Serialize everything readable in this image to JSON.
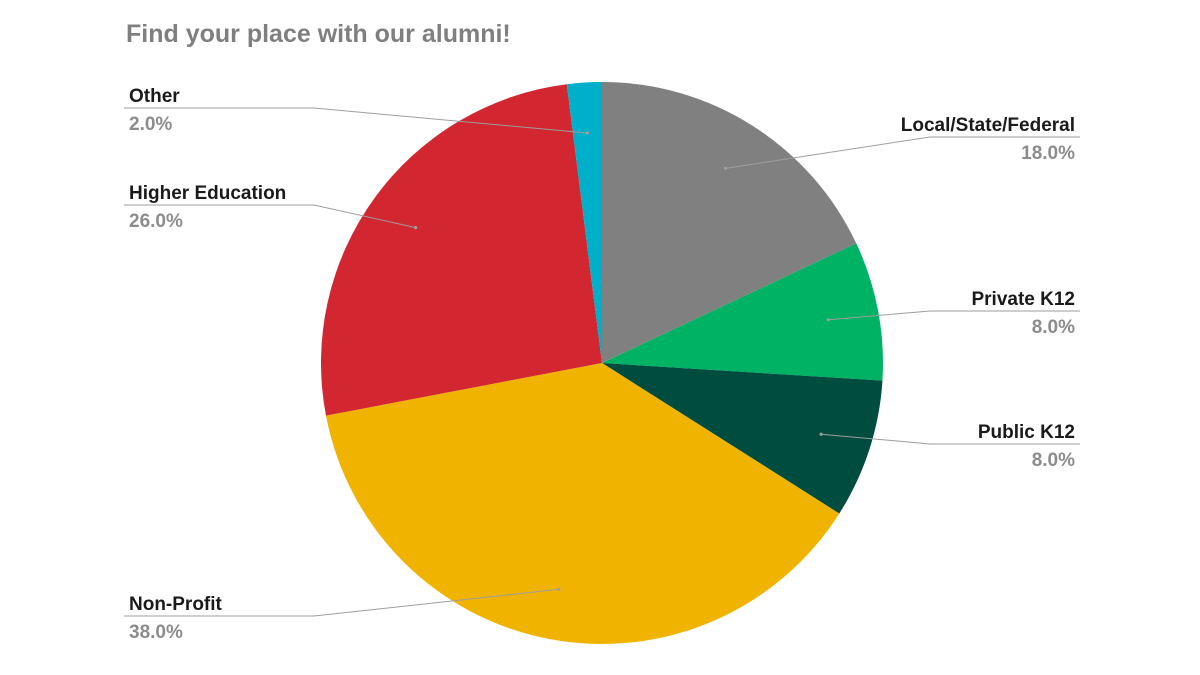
{
  "chart_data": {
    "type": "pie",
    "title": "Find your place with our alumni!",
    "slices": [
      {
        "label": "Local/State/Federal",
        "value": 18.0,
        "display": "18.0%",
        "color": "#808080",
        "side": "right"
      },
      {
        "label": "Private K12",
        "value": 8.0,
        "display": "8.0%",
        "color": "#00b263",
        "side": "right"
      },
      {
        "label": "Public K12",
        "value": 8.0,
        "display": "8.0%",
        "color": "#004d40",
        "side": "right"
      },
      {
        "label": "Non-Profit",
        "value": 38.0,
        "display": "38.0%",
        "color": "#f0b400",
        "side": "left"
      },
      {
        "label": "Higher Education",
        "value": 26.0,
        "display": "26.0%",
        "color": "#d22630",
        "side": "left"
      },
      {
        "label": "Other",
        "value": 2.0,
        "display": "2.0%",
        "color": "#00b0cb",
        "side": "left"
      }
    ],
    "start": "12 o'clock",
    "direction": "clockwise",
    "label_placement": "outside with leader lines",
    "legend": "none"
  }
}
